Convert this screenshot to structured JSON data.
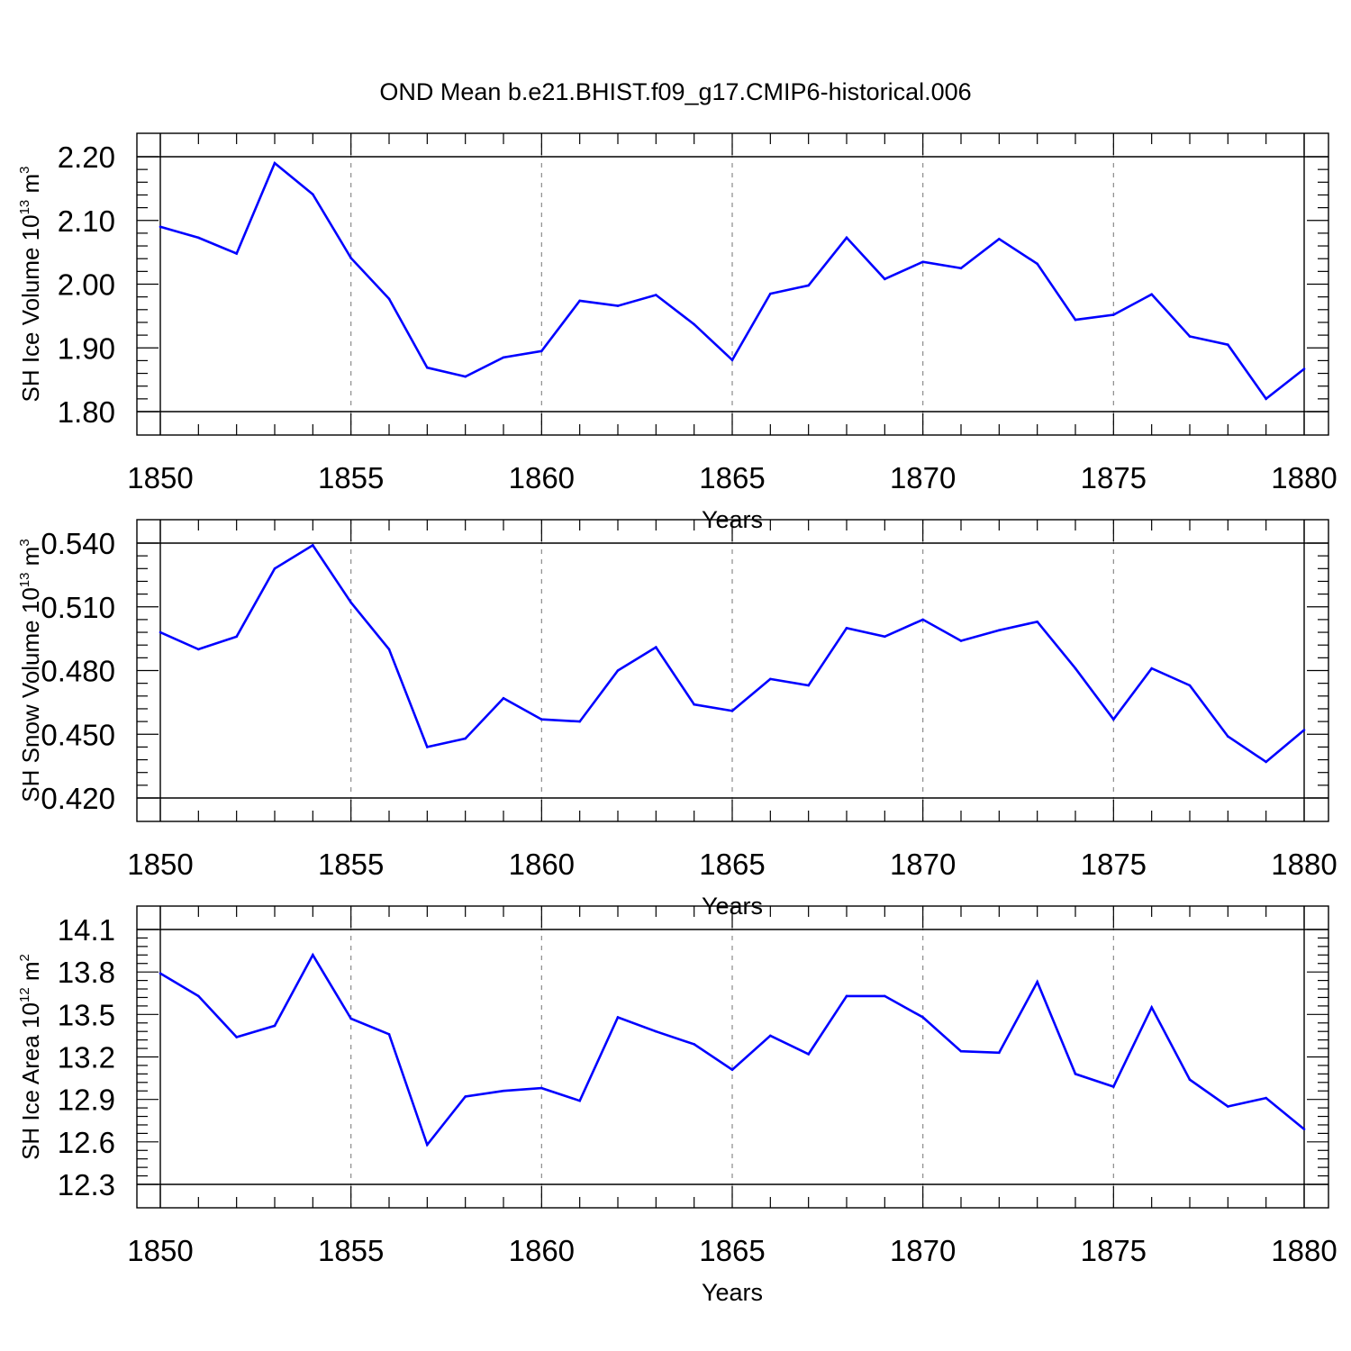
{
  "title": "OND Mean b.e21.BHIST.f09_g17.CMIP6-historical.006",
  "chart_data": [
    {
      "type": "line",
      "ylabel": {
        "text": "SH Ice Volume 10",
        "exp": "13",
        "unit": " m",
        "unit_exp": "3"
      },
      "xlabel": "Years",
      "xlim": [
        1850,
        1880
      ],
      "ylim": [
        1.8,
        2.2
      ],
      "yticks": [
        "1.80",
        "1.90",
        "2.00",
        "2.10",
        "2.20"
      ],
      "xticks": [
        "1850",
        "1855",
        "1860",
        "1865",
        "1870",
        "1875",
        "1880"
      ],
      "grid": "vertical dashed at major x ticks",
      "color": "#0000ff",
      "x": [
        1850,
        1851,
        1852,
        1853,
        1854,
        1855,
        1856,
        1857,
        1858,
        1859,
        1860,
        1861,
        1862,
        1863,
        1864,
        1865,
        1866,
        1867,
        1868,
        1869,
        1870,
        1871,
        1872,
        1873,
        1874,
        1875,
        1876,
        1877,
        1878,
        1879,
        1880
      ],
      "values": [
        2.09,
        2.073,
        2.048,
        2.19,
        2.141,
        2.041,
        1.977,
        1.869,
        1.855,
        1.885,
        1.895,
        1.974,
        1.966,
        1.983,
        1.937,
        1.881,
        1.985,
        1.998,
        2.073,
        2.008,
        2.035,
        2.025,
        2.071,
        2.032,
        1.944,
        1.952,
        1.984,
        1.918,
        1.905,
        1.82,
        1.867
      ]
    },
    {
      "type": "line",
      "ylabel": {
        "text": "SH Snow Volume 10",
        "exp": "13",
        "unit": " m",
        "unit_exp": "3"
      },
      "xlabel": "Years",
      "xlim": [
        1850,
        1880
      ],
      "ylim": [
        0.42,
        0.54
      ],
      "yticks": [
        "0.420",
        "0.450",
        "0.480",
        "0.510",
        "0.540"
      ],
      "xticks": [
        "1850",
        "1855",
        "1860",
        "1865",
        "1870",
        "1875",
        "1880"
      ],
      "grid": "vertical dashed at major x ticks",
      "color": "#0000ff",
      "x": [
        1850,
        1851,
        1852,
        1853,
        1854,
        1855,
        1856,
        1857,
        1858,
        1859,
        1860,
        1861,
        1862,
        1863,
        1864,
        1865,
        1866,
        1867,
        1868,
        1869,
        1870,
        1871,
        1872,
        1873,
        1874,
        1875,
        1876,
        1877,
        1878,
        1879,
        1880
      ],
      "values": [
        0.498,
        0.49,
        0.496,
        0.528,
        0.539,
        0.512,
        0.49,
        0.444,
        0.448,
        0.467,
        0.457,
        0.456,
        0.48,
        0.491,
        0.464,
        0.461,
        0.476,
        0.473,
        0.5,
        0.496,
        0.504,
        0.494,
        0.499,
        0.503,
        0.481,
        0.457,
        0.481,
        0.473,
        0.449,
        0.437,
        0.452
      ]
    },
    {
      "type": "line",
      "ylabel": {
        "text": "SH Ice Area 10",
        "exp": "12",
        "unit": " m",
        "unit_exp": "2"
      },
      "xlabel": "Years",
      "xlim": [
        1850,
        1880
      ],
      "ylim": [
        12.3,
        14.1
      ],
      "yticks": [
        "12.3",
        "12.6",
        "12.9",
        "13.2",
        "13.5",
        "13.8",
        "14.1"
      ],
      "xticks": [
        "1850",
        "1855",
        "1860",
        "1865",
        "1870",
        "1875",
        "1880"
      ],
      "grid": "vertical dashed at major x ticks",
      "color": "#0000ff",
      "x": [
        1850,
        1851,
        1852,
        1853,
        1854,
        1855,
        1856,
        1857,
        1858,
        1859,
        1860,
        1861,
        1862,
        1863,
        1864,
        1865,
        1866,
        1867,
        1868,
        1869,
        1870,
        1871,
        1872,
        1873,
        1874,
        1875,
        1876,
        1877,
        1878,
        1879,
        1880
      ],
      "values": [
        13.79,
        13.63,
        13.34,
        13.42,
        13.92,
        13.47,
        13.36,
        12.58,
        12.92,
        12.96,
        12.98,
        12.89,
        13.48,
        13.38,
        13.29,
        13.11,
        13.35,
        13.22,
        13.63,
        13.63,
        13.48,
        13.24,
        13.23,
        13.73,
        13.08,
        12.99,
        13.55,
        13.04,
        12.85,
        12.91,
        12.69
      ]
    }
  ]
}
